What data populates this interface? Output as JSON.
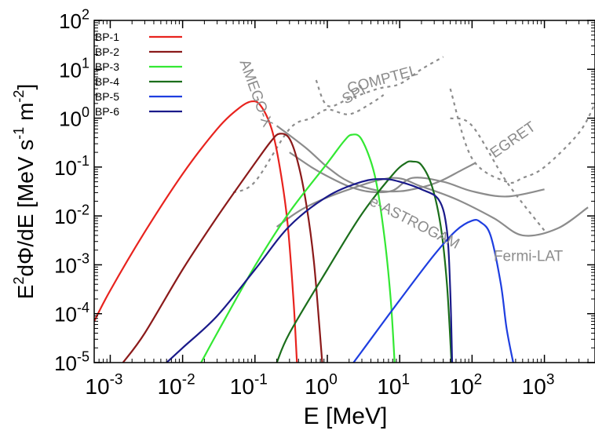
{
  "chart_data": {
    "type": "line",
    "xlabel": "E [MeV]",
    "ylabel_parts": [
      "E",
      "2",
      "dΦ/dE [MeV s",
      "-1",
      " m",
      "-2",
      "]"
    ],
    "x_scale": "log",
    "y_scale": "log",
    "xlim": [
      0.0006,
      5000
    ],
    "ylim": [
      1e-05,
      100
    ],
    "x_ticks": [
      {
        "base": "10",
        "exp": "-3",
        "value": 0.001
      },
      {
        "base": "10",
        "exp": "-2",
        "value": 0.01
      },
      {
        "base": "10",
        "exp": "-1",
        "value": 0.1
      },
      {
        "base": "10",
        "exp": "0",
        "value": 1
      },
      {
        "base": "10",
        "exp": "1",
        "value": 10
      },
      {
        "base": "10",
        "exp": "2",
        "value": 100
      },
      {
        "base": "10",
        "exp": "3",
        "value": 1000
      }
    ],
    "y_ticks": [
      {
        "base": "10",
        "exp": "-5",
        "value": 1e-05
      },
      {
        "base": "10",
        "exp": "-4",
        "value": 0.0001
      },
      {
        "base": "10",
        "exp": "-3",
        "value": 0.001
      },
      {
        "base": "10",
        "exp": "-2",
        "value": 0.01
      },
      {
        "base": "10",
        "exp": "-1",
        "value": 0.1
      },
      {
        "base": "10",
        "exp": "0",
        "value": 1
      },
      {
        "base": "10",
        "exp": "1",
        "value": 10
      },
      {
        "base": "10",
        "exp": "2",
        "value": 100
      }
    ],
    "legend_position": "top-left",
    "series": [
      {
        "name": "BP-1",
        "color": "#e8231e",
        "x": [
          0.0006,
          0.001,
          0.003,
          0.01,
          0.03,
          0.06,
          0.09,
          0.12,
          0.17,
          0.22,
          0.28,
          0.34,
          0.38
        ],
        "y": [
          7e-05,
          0.0003,
          0.0047,
          0.072,
          0.6,
          1.6,
          2.2,
          1.8,
          0.6,
          0.1,
          0.008,
          0.0002,
          1e-05
        ]
      },
      {
        "name": "BP-2",
        "color": "#8b1a1a",
        "x": [
          0.0015,
          0.003,
          0.01,
          0.03,
          0.1,
          0.17,
          0.22,
          0.3,
          0.4,
          0.52,
          0.65,
          0.78,
          0.85
        ],
        "y": [
          1e-05,
          4e-05,
          0.0008,
          0.0095,
          0.12,
          0.35,
          0.48,
          0.38,
          0.11,
          0.015,
          0.0012,
          5e-05,
          1e-05
        ]
      },
      {
        "name": "BP-3",
        "color": "#33e833",
        "x": [
          0.018,
          0.03,
          0.1,
          0.3,
          1,
          1.7,
          2.2,
          3,
          4.5,
          6,
          7.5,
          8.5
        ],
        "y": [
          1e-05,
          4e-05,
          0.00095,
          0.012,
          0.12,
          0.34,
          0.46,
          0.36,
          0.07,
          0.005,
          0.0002,
          1e-05
        ]
      },
      {
        "name": "BP-4",
        "color": "#1b6e1b",
        "x": [
          0.2,
          0.3,
          1,
          3,
          8,
          12,
          15,
          20,
          28,
          37,
          45,
          52
        ],
        "y": [
          1e-05,
          4e-05,
          0.0008,
          0.011,
          0.07,
          0.12,
          0.13,
          0.11,
          0.04,
          0.006,
          0.0004,
          1e-05
        ]
      },
      {
        "name": "BP-5",
        "color": "#1e3ee0",
        "x": [
          2.3,
          3,
          10,
          30,
          60,
          100,
          130,
          180,
          250,
          300,
          370
        ],
        "y": [
          1e-05,
          1.7e-05,
          0.00019,
          0.0016,
          0.005,
          0.008,
          0.0075,
          0.004,
          0.0004,
          5e-05,
          1e-05
        ]
      },
      {
        "name": "BP-6",
        "color": "#1a1a8a",
        "x": [
          0.006,
          0.01,
          0.03,
          0.1,
          0.3,
          1,
          3,
          6,
          10,
          20,
          35,
          45,
          50,
          53
        ],
        "y": [
          1e-05,
          2e-05,
          9e-05,
          0.0008,
          0.0062,
          0.025,
          0.05,
          0.057,
          0.05,
          0.035,
          0.021,
          0.005,
          0.0003,
          1e-05
        ]
      }
    ],
    "sensitivity_curves": [
      {
        "label": "AMEGO-X",
        "style": "solid",
        "color": "#8c8c8c",
        "x": [
          0.2,
          0.5,
          1,
          2,
          5,
          10,
          15,
          25,
          40,
          70,
          110
        ],
        "y": [
          0.7,
          0.25,
          0.1,
          0.05,
          0.033,
          0.032,
          0.035,
          0.042,
          0.055,
          0.085,
          0.12
        ]
      },
      {
        "label": "e-ASTROGAM",
        "style": "solid",
        "color": "#8c8c8c",
        "x": [
          0.3,
          0.6,
          1,
          2,
          4,
          8,
          15,
          40,
          100,
          300,
          1000
        ],
        "y": [
          0.2,
          0.1,
          0.065,
          0.04,
          0.031,
          0.033,
          0.06,
          0.05,
          0.032,
          0.025,
          0.035
        ]
      },
      {
        "label": "Fermi-LAT",
        "style": "solid",
        "color": "#8c8c8c",
        "x": [
          0.2,
          0.5,
          2,
          8,
          20,
          60,
          200,
          500,
          1500,
          4000
        ],
        "y": [
          0.006,
          0.015,
          0.035,
          0.06,
          0.04,
          0.022,
          0.009,
          0.004,
          0.0055,
          0.015
        ]
      },
      {
        "label": "SPI",
        "style": "dashed",
        "color": "#8c8c8c",
        "x": [
          0.05,
          0.1,
          0.3,
          0.6,
          1,
          2,
          4,
          6
        ],
        "y": [
          0.03,
          0.05,
          0.6,
          1,
          1.5,
          1.2,
          2,
          3
        ]
      },
      {
        "label": "COMPTEL",
        "style": "dashed",
        "color": "#8c8c8c",
        "x": [
          0.7,
          1,
          2,
          5,
          10,
          20,
          40
        ],
        "y": [
          6,
          1.8,
          2.5,
          4,
          5,
          10,
          18
        ]
      },
      {
        "label": "",
        "style": "dashed",
        "color": "#8c8c8c",
        "x": [
          50,
          100,
          300,
          1000
        ],
        "y": [
          1,
          0.7,
          0.05,
          0.005
        ]
      },
      {
        "label": "EGRET",
        "style": "dashed",
        "color": "#8c8c8c",
        "x": [
          50,
          100,
          300,
          500,
          1000,
          3000,
          5000
        ],
        "y": [
          4,
          0.15,
          0.05,
          0.06,
          0.1,
          0.5,
          2
        ]
      }
    ],
    "curve_labels": [
      {
        "text": "AMEGO-X",
        "x": 0.09,
        "y": 3,
        "rotate": 70
      },
      {
        "text": "SPI",
        "x": 2.5,
        "y": 2.5,
        "rotate": -28
      },
      {
        "text": "COMPTEL",
        "x": 6,
        "y": 5,
        "rotate": -15
      },
      {
        "text": "EGRET",
        "x": 400,
        "y": 0.3,
        "rotate": -35
      },
      {
        "text": "e-ASTROGAM",
        "x": 15,
        "y": 0.006,
        "rotate": 27
      },
      {
        "text": "Fermi-LAT",
        "x": 600,
        "y": 0.0012,
        "rotate": 0
      }
    ]
  }
}
